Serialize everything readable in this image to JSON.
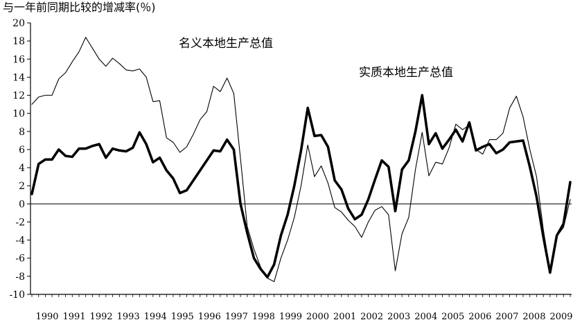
{
  "chart_data": {
    "type": "line",
    "ylabel": "与一年前同期比较的增减率(％)",
    "ylim": [
      -10,
      20
    ],
    "yticks": [
      -10,
      -8,
      -6,
      -4,
      -2,
      0,
      2,
      4,
      6,
      8,
      10,
      12,
      14,
      16,
      18,
      20
    ],
    "year_labels": [
      "1990",
      "1991",
      "1992",
      "1993",
      "1994",
      "1995",
      "1996",
      "1997",
      "1998",
      "1999",
      "2000",
      "2001",
      "2002",
      "2003",
      "2004",
      "2005",
      "2006",
      "2007",
      "2008",
      "2009"
    ],
    "annotations": [
      {
        "text": "名义本地生产总值",
        "series": "名义本地生产总值"
      },
      {
        "text": "实质本地生产总值",
        "series": "实质本地生产总值"
      }
    ],
    "series": [
      {
        "name": "名义本地生产总值",
        "style": "thin",
        "color": "#000000",
        "values": [
          11.0,
          11.8,
          12.0,
          12.0,
          13.8,
          14.5,
          15.7,
          16.8,
          18.4,
          17.2,
          16.0,
          15.2,
          16.1,
          15.5,
          14.8,
          14.7,
          14.9,
          14.0,
          11.3,
          11.4,
          7.3,
          6.8,
          5.7,
          6.3,
          7.7,
          9.3,
          10.2,
          13.0,
          12.4,
          13.9,
          12.2,
          5.0,
          -2.5,
          -5.0,
          -7.0,
          -8.2,
          -8.6,
          -6.0,
          -4.0,
          -1.5,
          2.0,
          6.5,
          3.0,
          4.2,
          2.3,
          -0.4,
          -0.9,
          -1.8,
          -2.5,
          -3.7,
          -2.0,
          -0.7,
          -0.3,
          -1.2,
          -7.4,
          -3.3,
          -1.5,
          3.8,
          7.9,
          3.1,
          4.6,
          4.4,
          6.2,
          8.8,
          8.2,
          8.7,
          6.0,
          5.5,
          7.1,
          7.1,
          7.8,
          10.6,
          11.9,
          9.6,
          6.0,
          3.0,
          -2.8,
          -7.4,
          -3.6,
          -2.6,
          0.5
        ]
      },
      {
        "name": "实质本地生产总值",
        "style": "thick",
        "color": "#000000",
        "values": [
          1.1,
          4.4,
          4.9,
          4.9,
          6.0,
          5.3,
          5.2,
          6.1,
          6.1,
          6.4,
          6.6,
          5.1,
          6.1,
          5.9,
          5.8,
          6.2,
          7.9,
          6.6,
          4.6,
          5.1,
          3.7,
          2.8,
          1.2,
          1.5,
          2.6,
          3.7,
          4.8,
          5.9,
          5.8,
          7.1,
          6.0,
          0.0,
          -3.2,
          -6.0,
          -7.2,
          -8.1,
          -6.7,
          -3.5,
          -1.2,
          2.0,
          5.9,
          10.6,
          7.5,
          7.6,
          6.3,
          2.6,
          1.6,
          -0.5,
          -1.7,
          -1.2,
          0.5,
          2.7,
          4.8,
          4.1,
          -0.8,
          3.8,
          4.8,
          8.0,
          12.0,
          6.6,
          7.8,
          6.1,
          7.1,
          8.2,
          6.9,
          9.0,
          5.9,
          6.3,
          6.6,
          5.6,
          6.0,
          6.8,
          6.9,
          7.0,
          4.1,
          0.8,
          -3.6,
          -7.6,
          -3.5,
          -2.2,
          2.4
        ]
      }
    ],
    "zero_line": true,
    "grid": false,
    "legend": "none"
  }
}
